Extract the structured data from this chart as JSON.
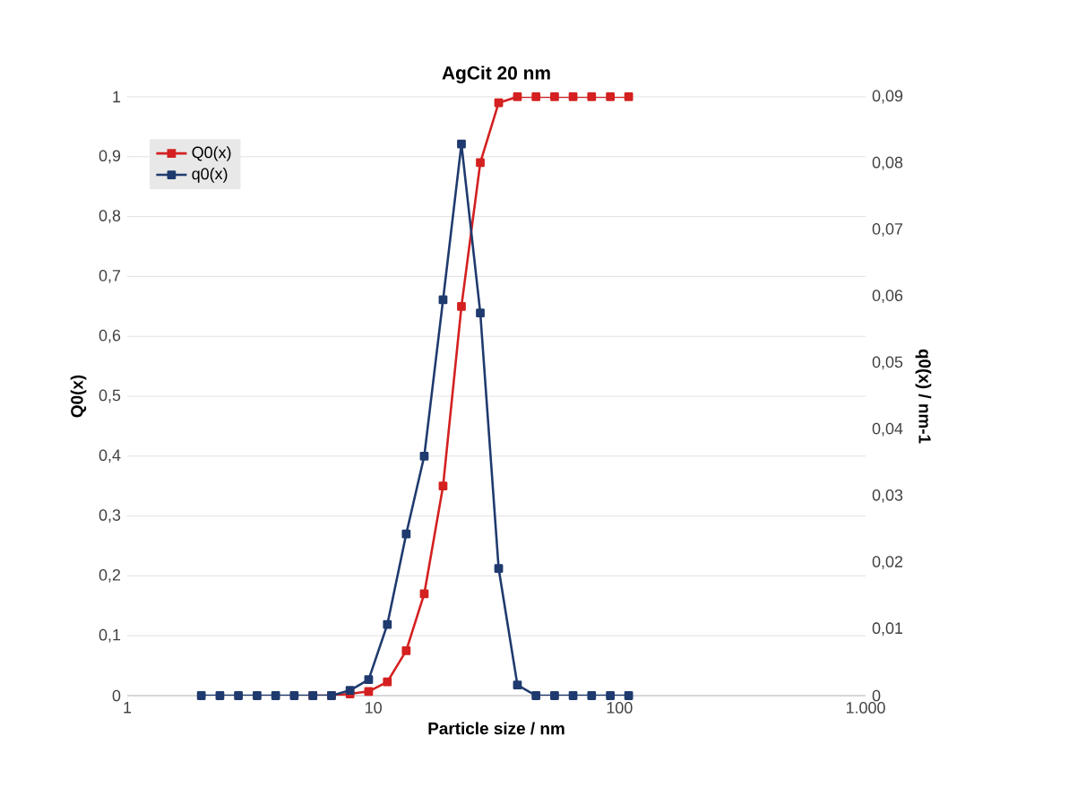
{
  "chart_data": {
    "type": "line",
    "title": "AgCit 20 nm",
    "xlabel": "Particle size / nm",
    "ylabel": "Q0(x)",
    "y2label": "q0(x) / nm-1",
    "x": [
      2,
      2.38,
      2.83,
      3.37,
      4.01,
      4.77,
      5.68,
      6.76,
      8.04,
      9.57,
      11.4,
      13.6,
      16.1,
      19.2,
      22.8,
      27.2,
      32.3,
      38.5,
      45.8,
      54.5,
      64.8,
      77.1,
      91.8,
      109
    ],
    "series": [
      {
        "name": "Q0(x)",
        "color": "#d42020",
        "axis": "y",
        "values": [
          null,
          null,
          null,
          null,
          null,
          null,
          0,
          0,
          0.003,
          0.007,
          0.023,
          0.075,
          0.17,
          0.35,
          0.65,
          0.89,
          0.99,
          1,
          1,
          1,
          1,
          1,
          1,
          1
        ]
      },
      {
        "name": "q0(x)",
        "color": "#1f3a6e",
        "axis": "y2",
        "values": [
          0,
          0,
          0,
          0,
          0,
          0,
          0,
          0,
          0.0008,
          0.0024,
          0.0107,
          0.0243,
          0.036,
          0.0595,
          0.0829,
          0.0575,
          0.0191,
          0.0016,
          0,
          0,
          0,
          0,
          0,
          0
        ]
      }
    ],
    "log": "x",
    "xlim": [
      1,
      1000
    ],
    "ylim": [
      0,
      1
    ],
    "y2lim": [
      0,
      0.09
    ],
    "xticks": [
      1,
      10,
      100,
      {
        "value": 1000,
        "label": "1.000"
      }
    ],
    "yticks": [
      0,
      {
        "value": 0.1,
        "label": "0,1"
      },
      {
        "value": 0.2,
        "label": "0,2"
      },
      {
        "value": 0.3,
        "label": "0,3"
      },
      {
        "value": 0.4,
        "label": "0,4"
      },
      {
        "value": 0.5,
        "label": "0,5"
      },
      {
        "value": 0.6,
        "label": "0,6"
      },
      {
        "value": 0.7,
        "label": "0,7"
      },
      {
        "value": 0.8,
        "label": "0,8"
      },
      {
        "value": 0.9,
        "label": "0,9"
      },
      1
    ],
    "y2ticks": [
      0,
      {
        "value": 0.01,
        "label": "0,01"
      },
      {
        "value": 0.02,
        "label": "0,02"
      },
      {
        "value": 0.03,
        "label": "0,03"
      },
      {
        "value": 0.04,
        "label": "0,04"
      },
      {
        "value": 0.05,
        "label": "0,05"
      },
      {
        "value": 0.06,
        "label": "0,06"
      },
      {
        "value": 0.07,
        "label": "0,07"
      },
      {
        "value": 0.08,
        "label": "0,08"
      },
      {
        "value": 0.09,
        "label": "0,09"
      }
    ],
    "grid": "y",
    "legend": "top left",
    "marker": "square",
    "line_style": "solid"
  }
}
